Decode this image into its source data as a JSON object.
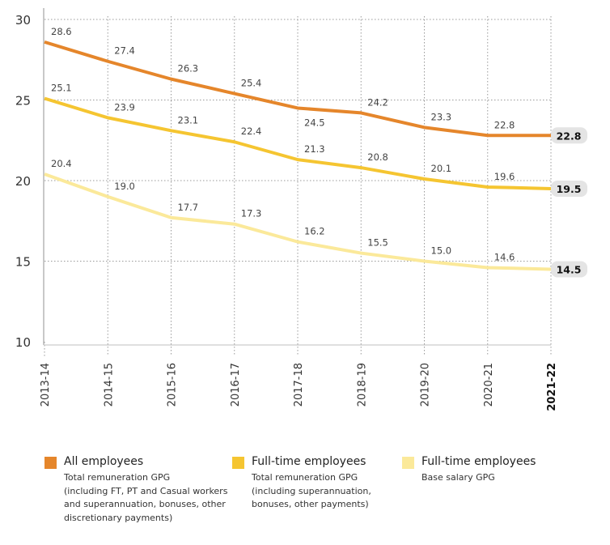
{
  "chart_data": {
    "type": "line",
    "title": "",
    "xlabel": "",
    "ylabel": "",
    "ylim": [
      10,
      30
    ],
    "yticks": [
      10,
      15,
      20,
      25,
      30
    ],
    "grid": true,
    "legend_position": "bottom",
    "categories": [
      "2013-14",
      "2014-15",
      "2015-16",
      "2016-17",
      "2017-18",
      "2018-19",
      "2019-20",
      "2020-21",
      "2021-22"
    ],
    "series": [
      {
        "name": "All employees",
        "description": "Total remuneration GPG\n(including FT, PT and Casual workers\nand superannuation, bonuses, other\ndiscretionary payments)",
        "color": "#E5862B",
        "values": [
          28.6,
          27.4,
          26.3,
          25.4,
          24.5,
          24.2,
          23.3,
          22.8,
          22.8
        ]
      },
      {
        "name": "Full-time employees",
        "description": "Total remuneration GPG\n(including superannuation,\nbonuses, other payments)",
        "color": "#F5C531",
        "values": [
          25.1,
          23.9,
          23.1,
          22.4,
          21.3,
          20.8,
          20.1,
          19.6,
          19.5
        ]
      },
      {
        "name": "Full-time employees",
        "description": "Base salary GPG",
        "color": "#FBE99A",
        "values": [
          20.4,
          19.0,
          17.7,
          17.3,
          16.2,
          15.5,
          15.0,
          14.6,
          14.5
        ]
      }
    ]
  }
}
